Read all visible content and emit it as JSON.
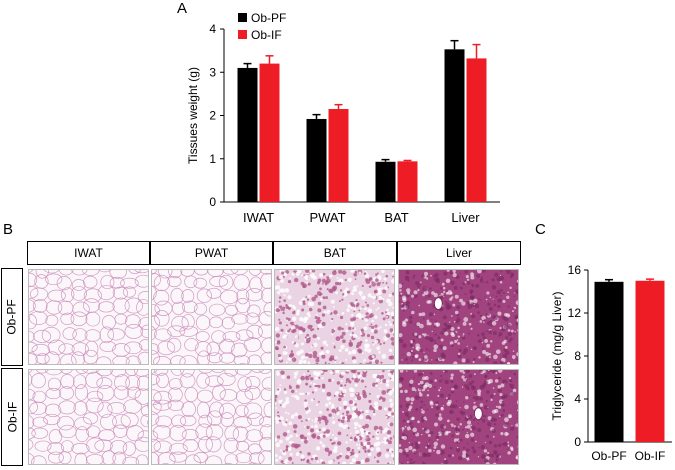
{
  "panel_letters": {
    "a": "A",
    "b": "B",
    "c": "C"
  },
  "histology": {
    "columns": [
      "IWAT",
      "PWAT",
      "BAT",
      "Liver"
    ],
    "rows": [
      "Ob-PF",
      "Ob-IF"
    ]
  },
  "colors": {
    "ob_pf": "#000000",
    "ob_if": "#ee1c25",
    "adipose_line": "#c98ab8",
    "bat_tissue": "#b05a8c",
    "liver_tissue": "#a0437e"
  },
  "chart_data": [
    {
      "type": "bar",
      "ylabel": "Tissues weight (g)",
      "xlabel": "",
      "categories": [
        "IWAT",
        "PWAT",
        "BAT",
        "Liver"
      ],
      "ylim": [
        0,
        4
      ],
      "yticks": [
        "0",
        "1",
        "2",
        "3",
        "4"
      ],
      "legend_position": "top-left",
      "series": [
        {
          "name": "Ob-PF",
          "values": [
            3.1,
            1.92,
            0.93,
            3.53
          ],
          "errors": [
            0.1,
            0.1,
            0.05,
            0.2
          ]
        },
        {
          "name": "Ob-IF",
          "values": [
            3.2,
            2.15,
            0.94,
            3.32
          ],
          "errors": [
            0.18,
            0.1,
            0.02,
            0.32
          ]
        }
      ]
    },
    {
      "type": "bar",
      "ylabel": "Triglyceride (mg/g Liver)",
      "xlabel": "",
      "categories": [
        "Ob-PF",
        "Ob-IF"
      ],
      "ylim": [
        0,
        16
      ],
      "yticks": [
        "0",
        "4",
        "8",
        "12",
        "16"
      ],
      "values": [
        14.9,
        15.0
      ],
      "errors": [
        0.2,
        0.15
      ]
    }
  ]
}
